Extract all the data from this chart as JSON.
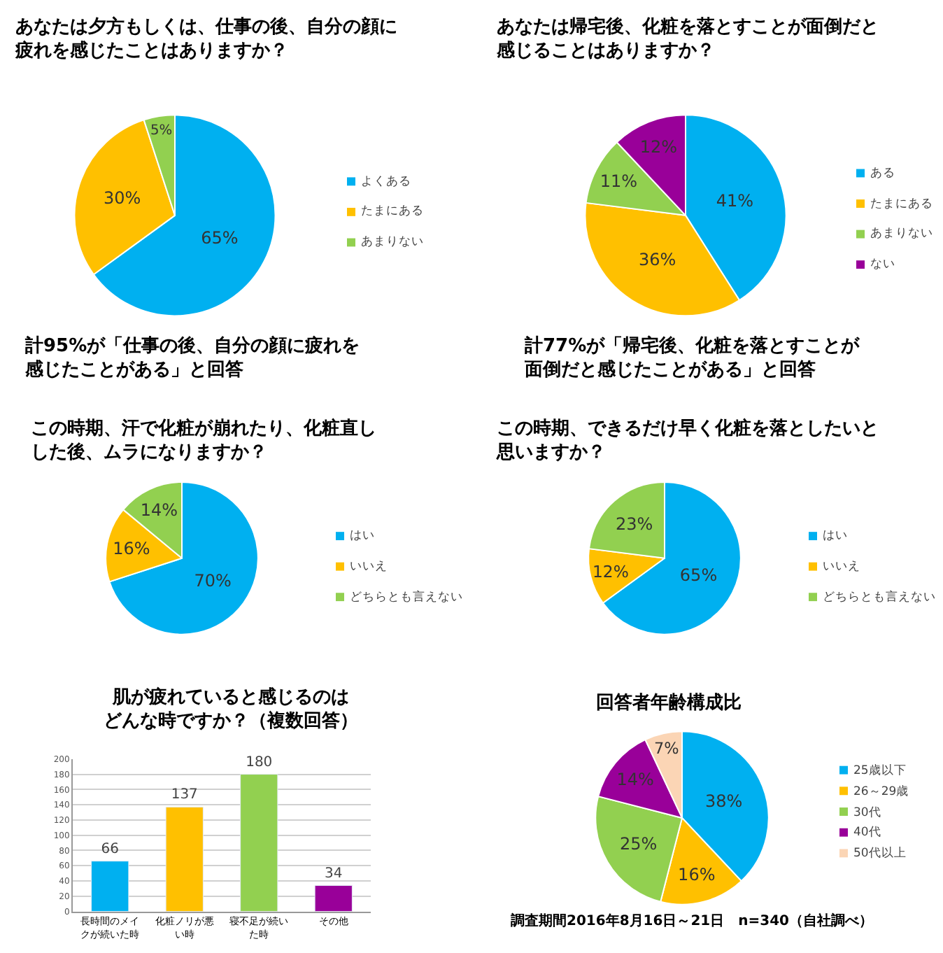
{
  "chart_data": [
    {
      "type": "pie",
      "title": "あなたは夕方もしくは、仕事の後、自分の顔に疲れを感じたことはありますか？",
      "categories": [
        "よくある",
        "たまにある",
        "あまりない"
      ],
      "values": [
        65,
        30,
        5
      ],
      "colors": [
        "#00b0f0",
        "#ffc000",
        "#92d050"
      ],
      "value_labels": [
        "65%",
        "30%",
        "5%"
      ],
      "legend": "right",
      "annotations": [
        "計95%が「仕事の後、自分の顔に疲れを感じたことがある」と回答"
      ]
    },
    {
      "type": "pie",
      "title": "あなたは帰宅後、化粧を落とすことが面倒だと感じることはありますか？",
      "categories": [
        "ある",
        "たまにある",
        "あまりない",
        "ない"
      ],
      "values": [
        41,
        36,
        11,
        12
      ],
      "colors": [
        "#00b0f0",
        "#ffc000",
        "#92d050",
        "#990099"
      ],
      "value_labels": [
        "41%",
        "36%",
        "11%",
        "12%"
      ],
      "legend": "right",
      "annotations": [
        "計77%が「帰宅後、化粧を落とすことが面倒だと感じたことがある」と回答"
      ]
    },
    {
      "type": "pie",
      "title": "この時期、汗で化粧が崩れたり、化粧直しした後、ムラになりますか？",
      "categories": [
        "はい",
        "いいえ",
        "どちらとも言えない"
      ],
      "values": [
        70,
        16,
        14
      ],
      "colors": [
        "#00b0f0",
        "#ffc000",
        "#92d050"
      ],
      "value_labels": [
        "70%",
        "16%",
        "14%"
      ],
      "legend": "right"
    },
    {
      "type": "pie",
      "title": "この時期、できるだけ早く化粧を落としたいと思いますか？",
      "categories": [
        "はい",
        "いいえ",
        "どちらとも言えない"
      ],
      "values": [
        65,
        12,
        23
      ],
      "colors": [
        "#00b0f0",
        "#ffc000",
        "#92d050"
      ],
      "value_labels": [
        "65%",
        "12%",
        "23%"
      ],
      "legend": "right"
    },
    {
      "type": "bar",
      "title": "肌が疲れていると感じるのはどんな時ですか？（複数回答）",
      "categories": [
        "長時間のメイクが続いた時",
        "化粧ノリが悪い時",
        "寝不足が続いた時",
        "その他"
      ],
      "values": [
        66,
        137,
        180,
        34
      ],
      "colors": [
        "#00b0f0",
        "#ffc000",
        "#92d050",
        "#990099"
      ],
      "ylim": [
        0,
        200
      ],
      "yticks": [
        0,
        20,
        40,
        60,
        80,
        100,
        120,
        140,
        160,
        180,
        200
      ],
      "grid": "y",
      "data_labels": true
    },
    {
      "type": "pie",
      "title": "回答者年齢構成比",
      "categories": [
        "25歳以下",
        "26～29歳",
        "30代",
        "40代",
        "50代以上"
      ],
      "values": [
        38,
        16,
        25,
        14,
        7
      ],
      "colors": [
        "#00b0f0",
        "#ffc000",
        "#92d050",
        "#990099",
        "#fbd5b5"
      ],
      "value_labels": [
        "38%",
        "16%",
        "25%",
        "14%",
        "7%"
      ],
      "legend": "right",
      "annotations": [
        "調査期間2016年8月16日～21日　n=340（自社調べ）"
      ]
    }
  ]
}
